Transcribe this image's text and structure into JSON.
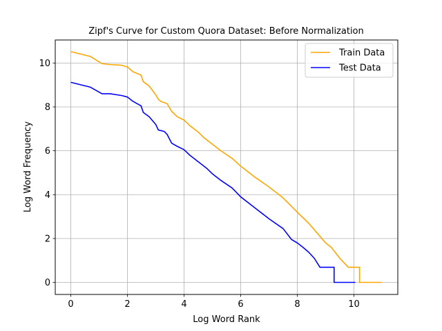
{
  "chart_data": {
    "type": "line",
    "title": "Zipf's Curve for Custom Quora Dataset: Before Normalization",
    "xlabel": "Log Word Rank",
    "ylabel": "Log Word Frequency",
    "xlim": [
      -0.55,
      11.55
    ],
    "ylim": [
      -0.55,
      11.05
    ],
    "xticks": [
      0,
      2,
      4,
      6,
      8,
      10
    ],
    "yticks": [
      0,
      2,
      4,
      6,
      8,
      10
    ],
    "grid": true,
    "legend_position": "top-right",
    "series": [
      {
        "name": "Train Data",
        "color": "#ffa500",
        "points": [
          [
            0,
            10.52
          ],
          [
            0.69,
            10.3
          ],
          [
            1.1,
            9.97
          ],
          [
            1.39,
            9.93
          ],
          [
            1.79,
            9.9
          ],
          [
            2.0,
            9.82
          ],
          [
            2.2,
            9.6
          ],
          [
            2.48,
            9.45
          ],
          [
            2.56,
            9.15
          ],
          [
            2.77,
            8.95
          ],
          [
            3.0,
            8.55
          ],
          [
            3.09,
            8.35
          ],
          [
            3.18,
            8.25
          ],
          [
            3.4,
            8.15
          ],
          [
            3.56,
            7.8
          ],
          [
            3.76,
            7.55
          ],
          [
            4.0,
            7.4
          ],
          [
            4.2,
            7.15
          ],
          [
            4.5,
            6.85
          ],
          [
            4.7,
            6.6
          ],
          [
            5.0,
            6.3
          ],
          [
            5.3,
            6.0
          ],
          [
            5.7,
            5.65
          ],
          [
            6.0,
            5.3
          ],
          [
            6.5,
            4.8
          ],
          [
            7.0,
            4.35
          ],
          [
            7.5,
            3.85
          ],
          [
            8.0,
            3.2
          ],
          [
            8.4,
            2.7
          ],
          [
            8.8,
            2.1
          ],
          [
            9.0,
            1.8
          ],
          [
            9.2,
            1.6
          ],
          [
            9.5,
            1.1
          ],
          [
            9.8,
            0.69
          ],
          [
            10.2,
            0.69
          ],
          [
            10.2,
            0.0
          ],
          [
            10.98,
            0.0
          ]
        ]
      },
      {
        "name": "Test Data",
        "color": "#0000ff",
        "points": [
          [
            0,
            9.12
          ],
          [
            0.69,
            8.9
          ],
          [
            1.1,
            8.6
          ],
          [
            1.39,
            8.6
          ],
          [
            1.79,
            8.52
          ],
          [
            2.0,
            8.45
          ],
          [
            2.2,
            8.25
          ],
          [
            2.48,
            8.05
          ],
          [
            2.56,
            7.75
          ],
          [
            2.77,
            7.55
          ],
          [
            3.0,
            7.2
          ],
          [
            3.09,
            6.95
          ],
          [
            3.3,
            6.88
          ],
          [
            3.4,
            6.75
          ],
          [
            3.56,
            6.35
          ],
          [
            3.76,
            6.2
          ],
          [
            4.0,
            6.05
          ],
          [
            4.2,
            5.8
          ],
          [
            4.5,
            5.5
          ],
          [
            4.8,
            5.2
          ],
          [
            5.0,
            4.95
          ],
          [
            5.3,
            4.65
          ],
          [
            5.7,
            4.3
          ],
          [
            6.0,
            3.9
          ],
          [
            6.5,
            3.4
          ],
          [
            7.0,
            2.9
          ],
          [
            7.5,
            2.45
          ],
          [
            7.8,
            1.95
          ],
          [
            8.0,
            1.8
          ],
          [
            8.2,
            1.6
          ],
          [
            8.4,
            1.38
          ],
          [
            8.6,
            1.1
          ],
          [
            8.8,
            0.69
          ],
          [
            9.3,
            0.69
          ],
          [
            9.3,
            0.0
          ],
          [
            10.05,
            0.0
          ]
        ]
      }
    ]
  }
}
